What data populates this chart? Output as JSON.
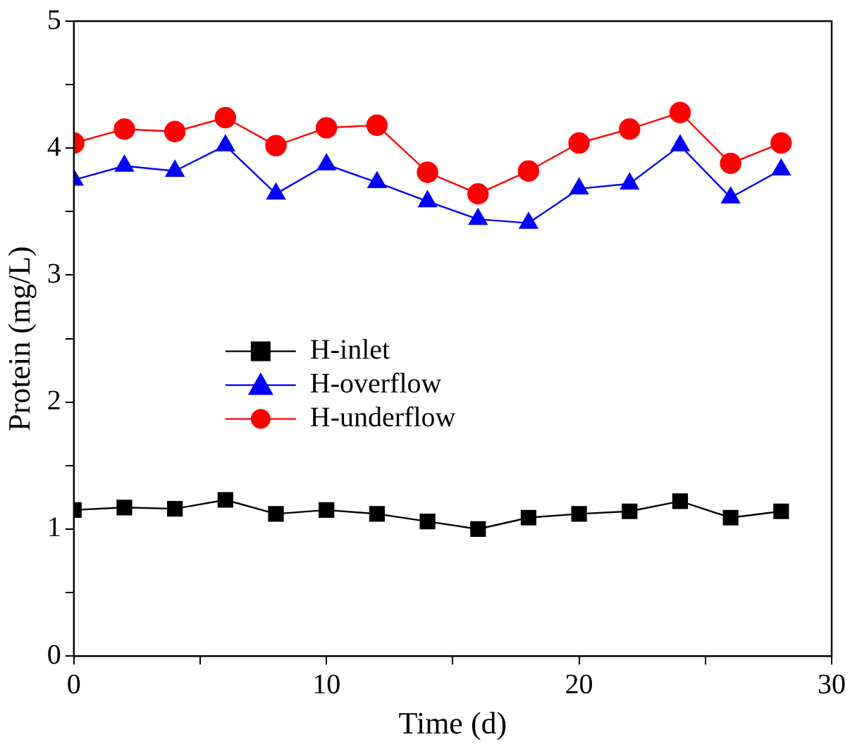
{
  "chart_data": {
    "type": "line",
    "xlabel": "Time (d)",
    "ylabel": "Protein (mg/L)",
    "x": [
      0,
      2,
      4,
      6,
      8,
      10,
      12,
      14,
      16,
      18,
      20,
      22,
      24,
      26,
      28
    ],
    "xlim": [
      0,
      30
    ],
    "xticks": [
      0,
      {
        "value": 5,
        "label": null
      },
      10,
      {
        "value": 15,
        "label": null
      },
      20,
      {
        "value": 25,
        "label": null
      },
      30
    ],
    "ylim": [
      0,
      5
    ],
    "yticks": [
      0,
      {
        "value": 0.5,
        "label": null
      },
      1,
      {
        "value": 1.5,
        "label": null
      },
      2,
      {
        "value": 2.5,
        "label": null
      },
      3,
      {
        "value": 3.5,
        "label": null
      },
      4,
      {
        "value": 4.5,
        "label": null
      },
      5
    ],
    "grid": false,
    "legend": "left",
    "line_style": "solid",
    "series": [
      {
        "name": "H-inlet",
        "color": "#000000",
        "marker": "square",
        "values": [
          1.15,
          1.17,
          1.16,
          1.23,
          1.12,
          1.15,
          1.12,
          1.06,
          1.0,
          1.09,
          1.12,
          1.14,
          1.22,
          1.09,
          1.14
        ]
      },
      {
        "name": "H-overflow",
        "color": "#0000ff",
        "marker": "triangle",
        "values": [
          3.75,
          3.86,
          3.82,
          4.02,
          3.64,
          3.87,
          3.73,
          3.58,
          3.44,
          3.41,
          3.68,
          3.72,
          4.02,
          3.61,
          3.83
        ]
      },
      {
        "name": "H-underflow",
        "color": "#ff0000",
        "marker": "circle",
        "values": [
          4.04,
          4.15,
          4.13,
          4.24,
          4.02,
          4.16,
          4.18,
          3.81,
          3.64,
          3.82,
          4.04,
          4.15,
          4.28,
          3.88,
          4.04
        ]
      }
    ]
  }
}
